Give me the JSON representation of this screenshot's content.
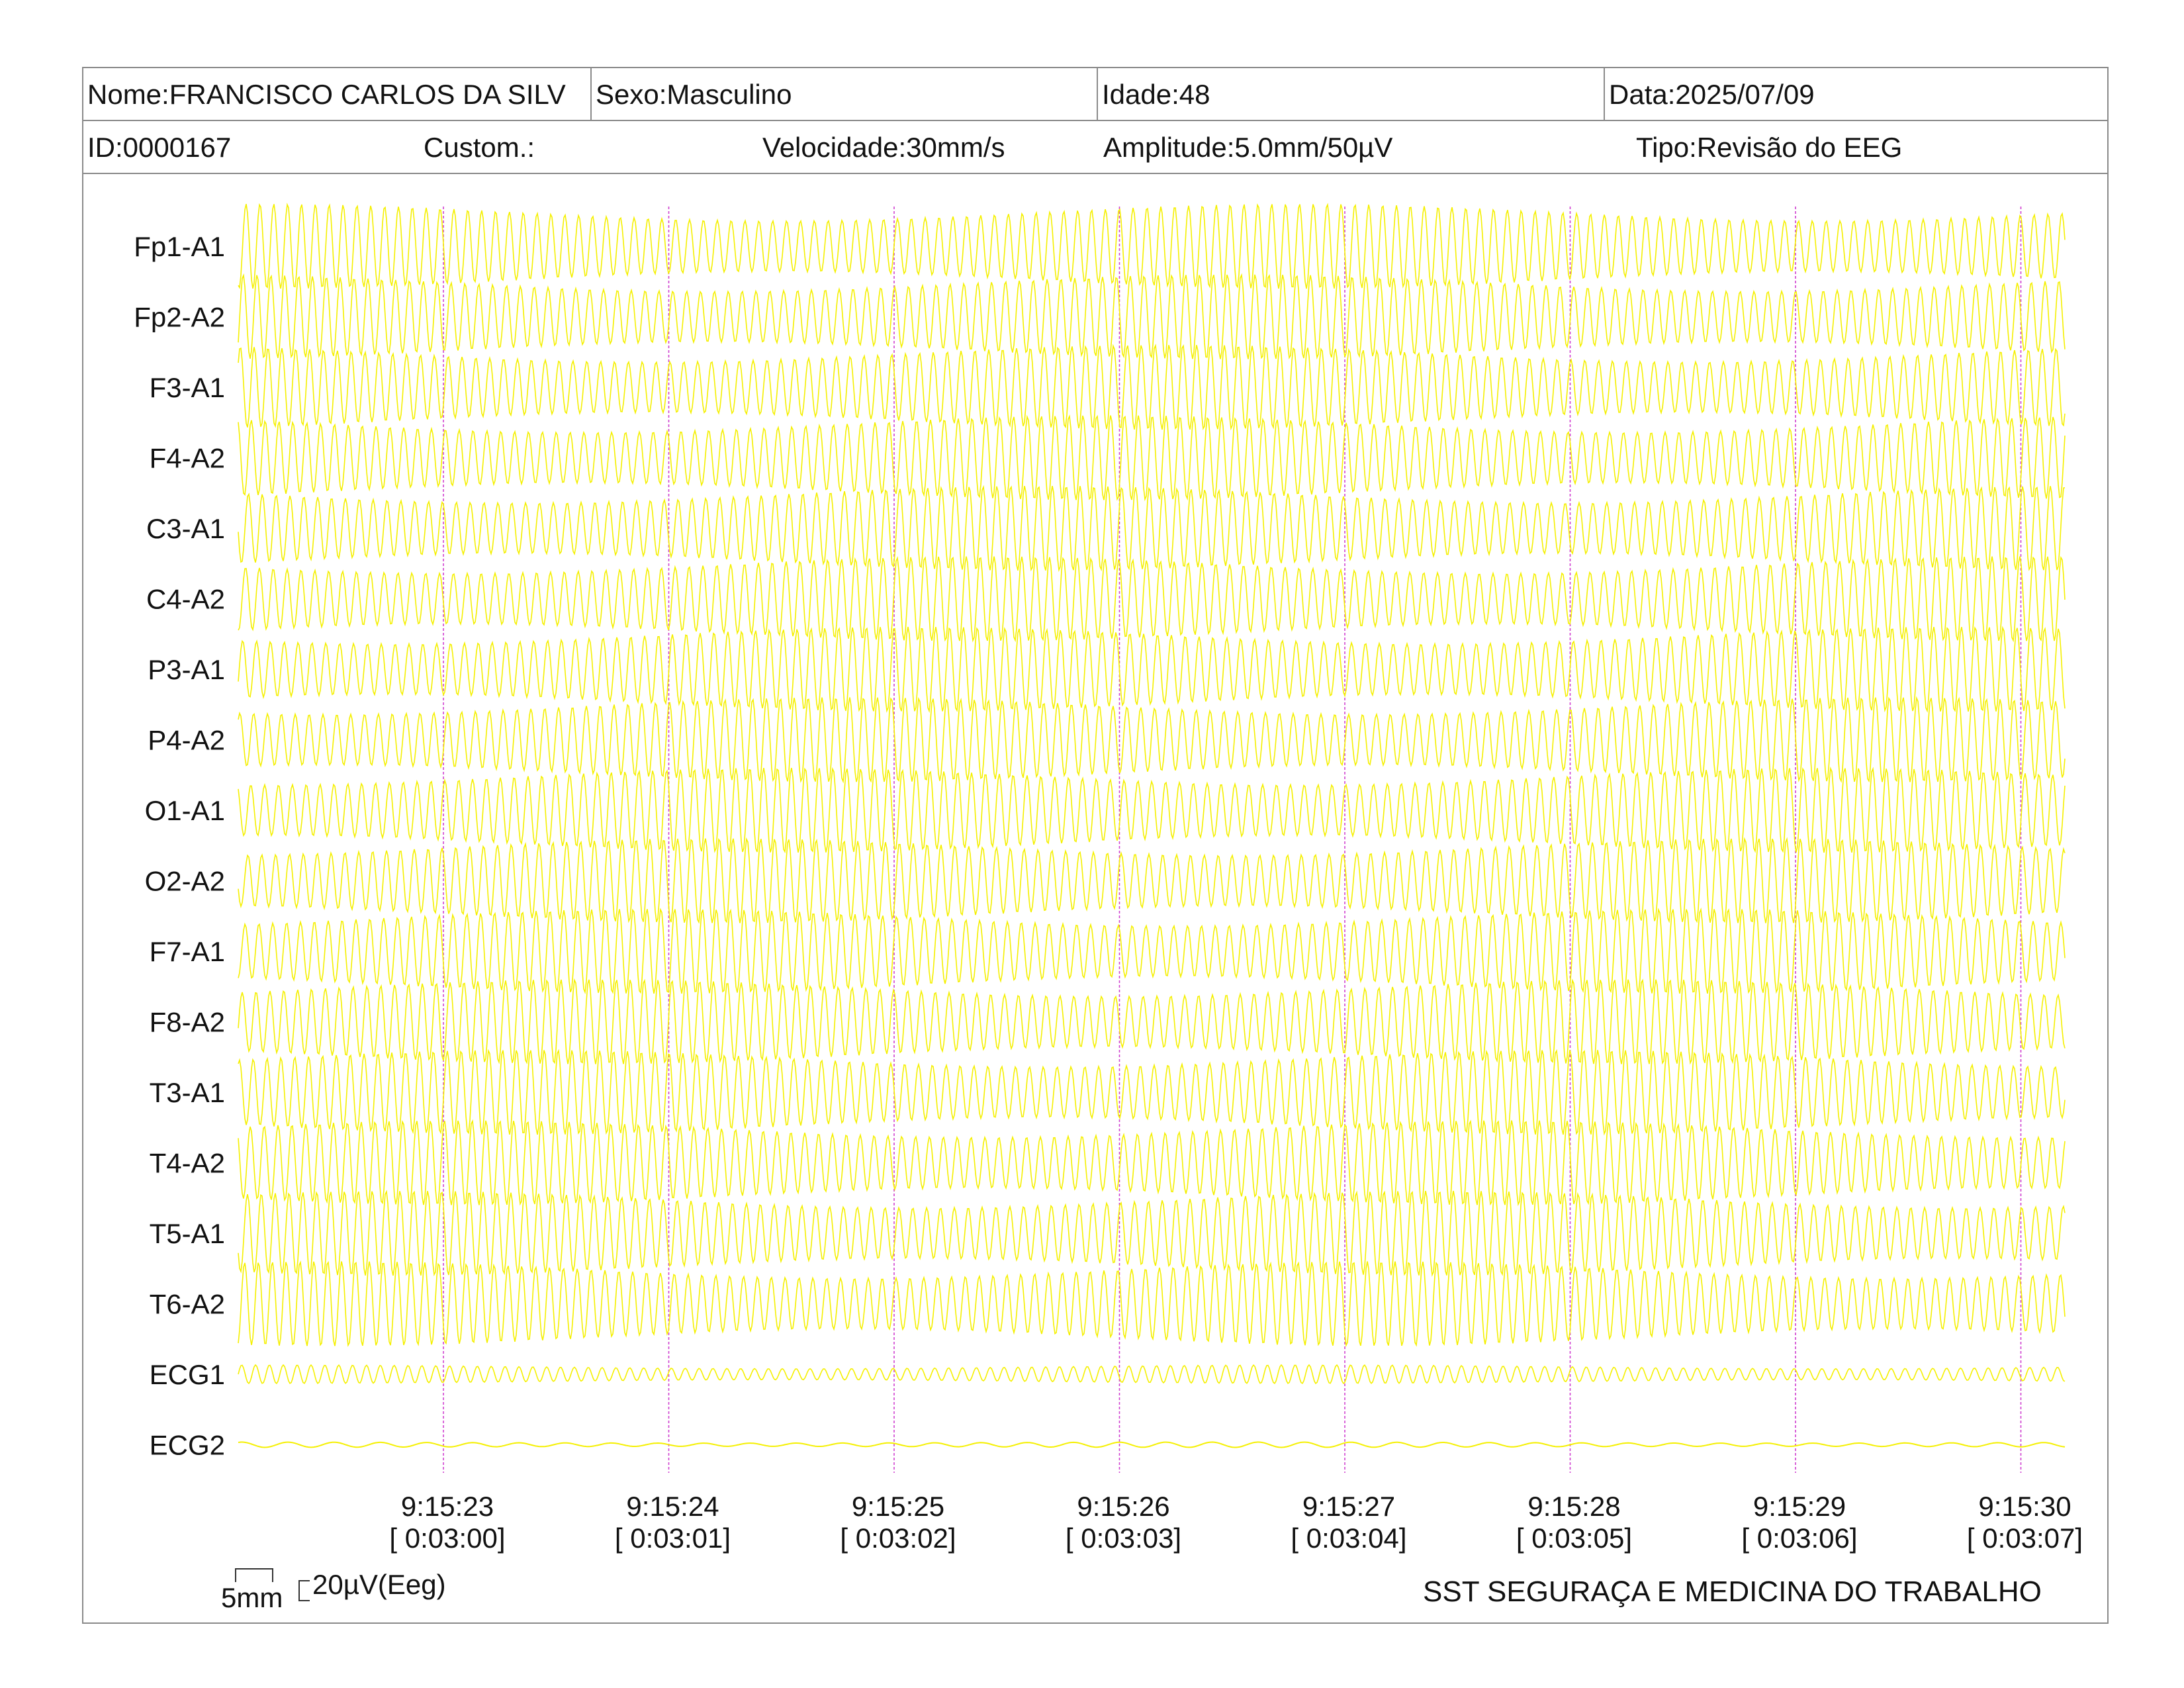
{
  "header": {
    "nome": "Nome:FRANCISCO CARLOS DA SILV",
    "sexo": "Sexo:Masculino",
    "idade": "Idade:48",
    "data": "Data:2025/07/09",
    "id": "ID:0000167",
    "custom": "Custom.:",
    "velocidade": "Velocidade:30mm/s",
    "amplitude": "Amplitude:5.0mm/50µV",
    "tipo": "Tipo:Revisão do EEG"
  },
  "channels": [
    "Fp1-A1",
    "Fp2-A2",
    "F3-A1",
    "F4-A2",
    "C3-A1",
    "C4-A2",
    "P3-A1",
    "P4-A2",
    "O1-A1",
    "O2-A2",
    "F7-A1",
    "F8-A2",
    "T3-A1",
    "T4-A2",
    "T5-A1",
    "T6-A2",
    "ECG1",
    "ECG2"
  ],
  "time_marks": [
    {
      "clock": "9:15:23",
      "elapsed": "[ 0:03:00]"
    },
    {
      "clock": "9:15:24",
      "elapsed": "[ 0:03:01]"
    },
    {
      "clock": "9:15:25",
      "elapsed": "[ 0:03:02]"
    },
    {
      "clock": "9:15:26",
      "elapsed": "[ 0:03:03]"
    },
    {
      "clock": "9:15:27",
      "elapsed": "[ 0:03:04]"
    },
    {
      "clock": "9:15:28",
      "elapsed": "[ 0:03:05]"
    },
    {
      "clock": "9:15:29",
      "elapsed": "[ 0:03:06]"
    },
    {
      "clock": "9:15:30",
      "elapsed": "[ 0:03:07]"
    }
  ],
  "scale": {
    "time_label": "5mm",
    "amp_label": "20µV(Eeg)"
  },
  "footer": "SST SEGURAÇA E MEDICINA DO TRABALHO",
  "colors": {
    "trace": "#f5f000",
    "marker": "#d040d0",
    "border": "#8a8a8a"
  }
}
